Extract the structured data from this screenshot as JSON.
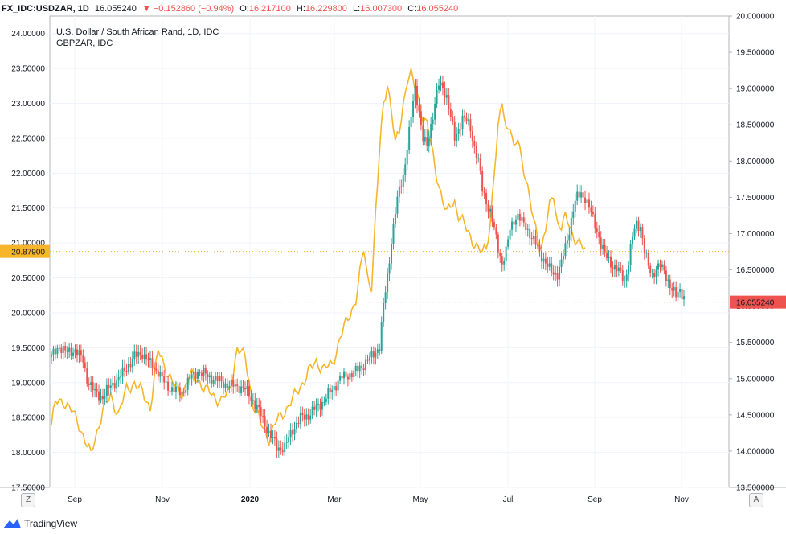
{
  "header": {
    "symbol": "FX_IDC:USDZAR, 1D",
    "last": "16.055240",
    "change": "▼ −0.152860 (−0.94%)",
    "o_label": "O:",
    "o_value": "16.217100",
    "h_label": "H:",
    "h_value": "16.229800",
    "l_label": "L:",
    "l_value": "16.007300",
    "c_label": "C:",
    "c_value": "16.055240"
  },
  "footer": {
    "brand": "TradingView",
    "left_button": "Z",
    "right_button": "A"
  },
  "colors": {
    "up": "#26a69a",
    "down": "#ef5350",
    "comparison": "#f7b52c",
    "grid": "#f0f3fa",
    "axis": "#b2b5be"
  },
  "chart_data": {
    "type": "candlestick",
    "legend": [
      "U.S. Dollar / South African Rand, 1D, IDC",
      "GBPZAR, IDC"
    ],
    "x_ticks": [
      "Sep",
      "Nov",
      "2020",
      "Mar",
      "May",
      "Jul",
      "Sep",
      "Nov"
    ],
    "left_axis": {
      "ticks": [
        "24.00000",
        "23.50000",
        "23.00000",
        "22.50000",
        "22.00000",
        "21.50000",
        "21.00000",
        "20.50000",
        "20.00000",
        "19.50000",
        "19.00000",
        "18.50000",
        "18.00000",
        "17.50000"
      ],
      "range": [
        17.5,
        24.25
      ]
    },
    "right_axis": {
      "ticks": [
        "20.000000",
        "19.500000",
        "19.000000",
        "18.500000",
        "18.000000",
        "17.500000",
        "17.000000",
        "16.500000",
        "16.000000",
        "15.500000",
        "15.000000",
        "14.500000",
        "14.000000",
        "13.500000"
      ],
      "range": [
        13.5,
        20.0
      ]
    },
    "markers": {
      "left": {
        "label": "20.87900",
        "value": 20.879,
        "color": "#f7b52c"
      },
      "right": {
        "label": "16.055240",
        "value": 16.05524,
        "color": "#ef5350"
      }
    },
    "series": [
      {
        "name": "U.S. Dollar / South African Rand, 1D, IDC",
        "axis": "right",
        "points": [
          [
            0,
            15.3
          ],
          [
            4,
            15.45
          ],
          [
            8,
            15.35
          ],
          [
            12,
            15.4
          ],
          [
            16,
            15.25
          ],
          [
            18,
            15.0
          ],
          [
            22,
            14.8
          ],
          [
            26,
            14.75
          ],
          [
            30,
            14.9
          ],
          [
            34,
            15.0
          ],
          [
            38,
            15.15
          ],
          [
            42,
            15.3
          ],
          [
            46,
            15.35
          ],
          [
            50,
            15.2
          ],
          [
            54,
            15.1
          ],
          [
            58,
            14.9
          ],
          [
            62,
            14.85
          ],
          [
            66,
            14.8
          ],
          [
            70,
            15.0
          ],
          [
            74,
            15.1
          ],
          [
            78,
            15.05
          ],
          [
            82,
            15.0
          ],
          [
            86,
            14.95
          ],
          [
            90,
            14.9
          ],
          [
            94,
            14.9
          ],
          [
            98,
            14.85
          ],
          [
            102,
            14.7
          ],
          [
            106,
            14.5
          ],
          [
            110,
            14.25
          ],
          [
            114,
            14.05
          ],
          [
            118,
            14.05
          ],
          [
            122,
            14.3
          ],
          [
            126,
            14.45
          ],
          [
            130,
            14.5
          ],
          [
            134,
            14.6
          ],
          [
            138,
            14.7
          ],
          [
            142,
            14.85
          ],
          [
            146,
            15.0
          ],
          [
            150,
            15.05
          ],
          [
            154,
            15.1
          ],
          [
            158,
            15.2
          ],
          [
            162,
            15.3
          ],
          [
            166,
            15.45
          ],
          [
            168,
            16.0
          ],
          [
            170,
            16.4
          ],
          [
            172,
            16.9
          ],
          [
            174,
            17.3
          ],
          [
            176,
            17.6
          ],
          [
            178,
            17.8
          ],
          [
            180,
            18.2
          ],
          [
            182,
            18.6
          ],
          [
            184,
            19.0
          ],
          [
            186,
            18.7
          ],
          [
            188,
            18.3
          ],
          [
            190,
            18.2
          ],
          [
            192,
            18.5
          ],
          [
            194,
            18.8
          ],
          [
            196,
            19.05
          ],
          [
            198,
            19.0
          ],
          [
            200,
            18.9
          ],
          [
            202,
            18.6
          ],
          [
            204,
            18.3
          ],
          [
            206,
            18.45
          ],
          [
            208,
            18.6
          ],
          [
            210,
            18.55
          ],
          [
            212,
            18.45
          ],
          [
            214,
            18.2
          ],
          [
            216,
            18.0
          ],
          [
            218,
            17.6
          ],
          [
            220,
            17.45
          ],
          [
            222,
            17.3
          ],
          [
            224,
            17.05
          ],
          [
            226,
            16.8
          ],
          [
            228,
            16.6
          ],
          [
            230,
            16.75
          ],
          [
            232,
            17.05
          ],
          [
            234,
            17.2
          ],
          [
            236,
            17.25
          ],
          [
            238,
            17.15
          ],
          [
            240,
            17.1
          ],
          [
            242,
            17.0
          ],
          [
            244,
            16.9
          ],
          [
            246,
            16.8
          ],
          [
            248,
            16.7
          ],
          [
            250,
            16.6
          ],
          [
            252,
            16.5
          ],
          [
            254,
            16.45
          ],
          [
            256,
            16.45
          ],
          [
            258,
            16.6
          ],
          [
            260,
            16.8
          ],
          [
            262,
            17.05
          ],
          [
            264,
            17.35
          ],
          [
            266,
            17.5
          ],
          [
            268,
            17.55
          ],
          [
            270,
            17.5
          ],
          [
            272,
            17.35
          ],
          [
            274,
            17.2
          ],
          [
            276,
            17.05
          ],
          [
            278,
            16.85
          ],
          [
            280,
            16.7
          ],
          [
            282,
            16.65
          ],
          [
            284,
            16.55
          ],
          [
            286,
            16.5
          ],
          [
            288,
            16.45
          ],
          [
            290,
            16.35
          ],
          [
            292,
            16.6
          ],
          [
            294,
            16.95
          ],
          [
            296,
            17.15
          ],
          [
            298,
            17.1
          ],
          [
            300,
            16.75
          ],
          [
            302,
            16.55
          ],
          [
            304,
            16.45
          ],
          [
            306,
            16.5
          ],
          [
            308,
            16.55
          ],
          [
            310,
            16.5
          ],
          [
            312,
            16.35
          ],
          [
            314,
            16.2
          ],
          [
            316,
            16.15
          ],
          [
            318,
            16.25
          ],
          [
            320,
            16.1
          ]
        ]
      },
      {
        "name": "GBPZAR, IDC",
        "axis": "left",
        "points": [
          [
            0,
            18.4
          ],
          [
            2,
            18.7
          ],
          [
            6,
            18.75
          ],
          [
            10,
            18.6
          ],
          [
            14,
            18.4
          ],
          [
            18,
            18.1
          ],
          [
            20,
            17.95
          ],
          [
            22,
            18.2
          ],
          [
            26,
            18.6
          ],
          [
            30,
            18.8
          ],
          [
            34,
            18.55
          ],
          [
            38,
            18.9
          ],
          [
            42,
            19.0
          ],
          [
            46,
            18.85
          ],
          [
            50,
            18.65
          ],
          [
            54,
            19.45
          ],
          [
            58,
            19.2
          ],
          [
            62,
            18.95
          ],
          [
            66,
            18.85
          ],
          [
            70,
            19.1
          ],
          [
            74,
            19.05
          ],
          [
            78,
            18.9
          ],
          [
            82,
            18.8
          ],
          [
            86,
            18.75
          ],
          [
            90,
            18.85
          ],
          [
            94,
            19.5
          ],
          [
            98,
            19.35
          ],
          [
            102,
            18.7
          ],
          [
            106,
            18.4
          ],
          [
            110,
            18.2
          ],
          [
            114,
            18.45
          ],
          [
            118,
            18.6
          ],
          [
            122,
            18.75
          ],
          [
            126,
            18.95
          ],
          [
            130,
            19.15
          ],
          [
            134,
            19.3
          ],
          [
            138,
            19.2
          ],
          [
            142,
            19.25
          ],
          [
            146,
            19.65
          ],
          [
            150,
            19.9
          ],
          [
            154,
            20.2
          ],
          [
            158,
            20.9
          ],
          [
            160,
            20.5
          ],
          [
            162,
            20.4
          ],
          [
            164,
            21.4
          ],
          [
            166,
            22.3
          ],
          [
            168,
            23.0
          ],
          [
            170,
            23.3
          ],
          [
            172,
            22.9
          ],
          [
            174,
            22.4
          ],
          [
            176,
            22.6
          ],
          [
            178,
            23.0
          ],
          [
            180,
            23.35
          ],
          [
            182,
            23.4
          ],
          [
            184,
            23.2
          ],
          [
            186,
            23.05
          ],
          [
            188,
            22.8
          ],
          [
            190,
            22.7
          ],
          [
            192,
            22.4
          ],
          [
            194,
            22.1
          ],
          [
            196,
            21.85
          ],
          [
            198,
            21.6
          ],
          [
            200,
            21.4
          ],
          [
            202,
            21.55
          ],
          [
            204,
            21.6
          ],
          [
            206,
            21.4
          ],
          [
            208,
            21.3
          ],
          [
            210,
            21.2
          ],
          [
            212,
            21.1
          ],
          [
            214,
            21.0
          ],
          [
            216,
            20.9
          ],
          [
            218,
            20.85
          ],
          [
            220,
            20.95
          ],
          [
            222,
            21.3
          ],
          [
            224,
            22.0
          ],
          [
            226,
            22.6
          ],
          [
            228,
            23.05
          ],
          [
            230,
            22.65
          ],
          [
            232,
            22.7
          ],
          [
            234,
            22.3
          ],
          [
            236,
            22.5
          ],
          [
            238,
            22.2
          ],
          [
            240,
            21.95
          ],
          [
            242,
            21.6
          ],
          [
            244,
            21.3
          ],
          [
            246,
            21.1
          ],
          [
            248,
            20.95
          ],
          [
            250,
            21.2
          ],
          [
            252,
            21.5
          ],
          [
            254,
            21.7
          ],
          [
            256,
            21.3
          ],
          [
            258,
            21.25
          ],
          [
            260,
            21.35
          ],
          [
            262,
            21.25
          ],
          [
            264,
            21.1
          ],
          [
            266,
            21.05
          ],
          [
            268,
            20.95
          ],
          [
            270,
            20.88
          ]
        ]
      }
    ]
  }
}
